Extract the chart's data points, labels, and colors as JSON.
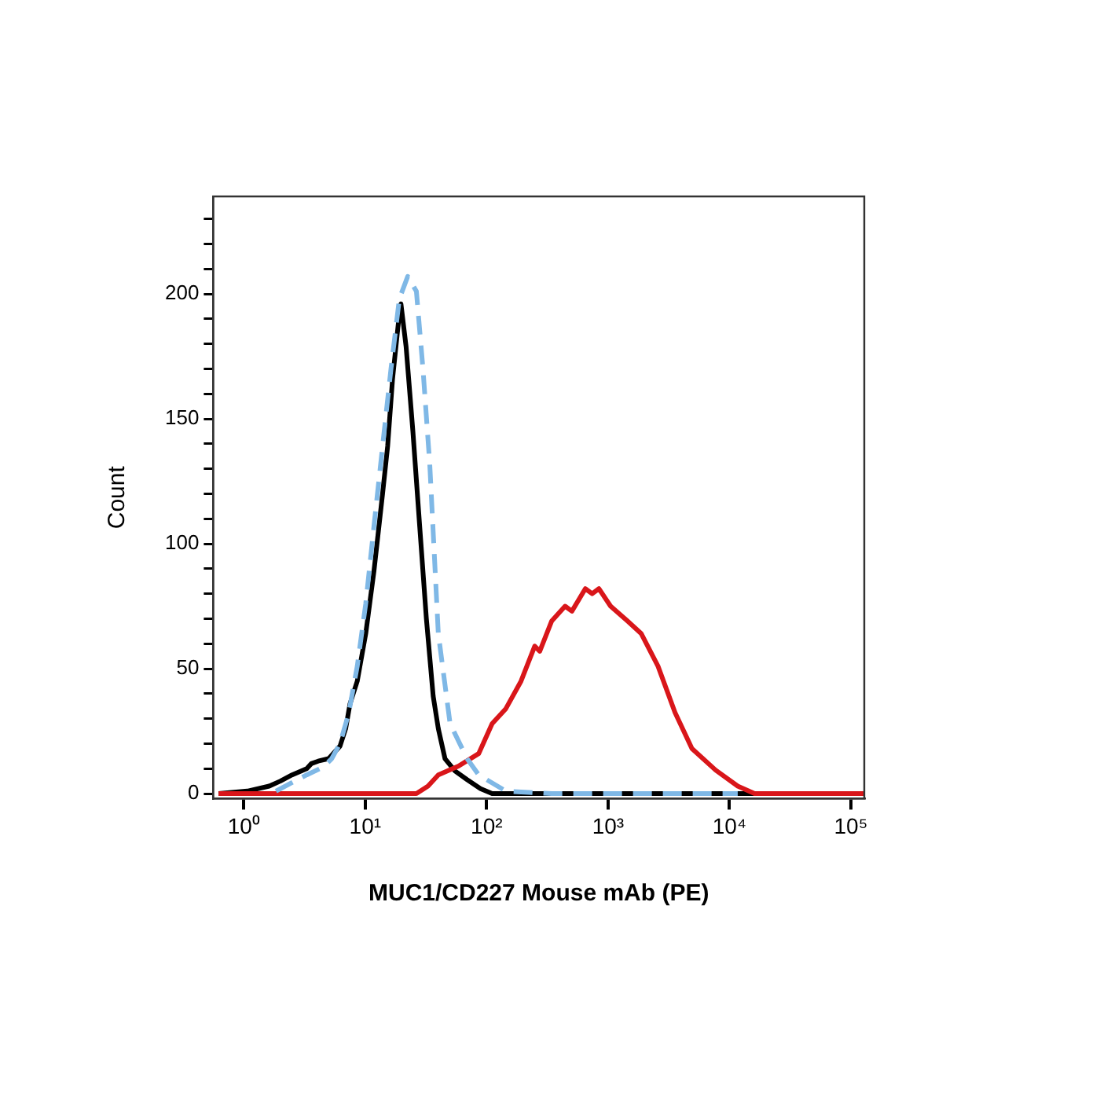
{
  "chart_data": {
    "type": "line",
    "xlabel": "MUC1/CD227 Mouse mAb (PE)",
    "ylabel": "Count",
    "log": "x",
    "marker": "none",
    "grid": false,
    "legend": false,
    "xlim": [
      0.56,
      129000
    ],
    "xticks": [
      {
        "value": 1,
        "label": "10⁰"
      },
      {
        "value": 10,
        "label": "10¹"
      },
      {
        "value": 100,
        "label": "10²"
      },
      {
        "value": 1000,
        "label": "10³"
      },
      {
        "value": 10000,
        "label": "10⁴"
      },
      {
        "value": 100000,
        "label": "10⁵"
      }
    ],
    "ylim": [
      -2,
      239
    ],
    "yticks": [
      0,
      {
        "value": 10,
        "label": null
      },
      {
        "value": 20,
        "label": null
      },
      {
        "value": 30,
        "label": null
      },
      {
        "value": 40,
        "label": null
      },
      50,
      {
        "value": 60,
        "label": null
      },
      {
        "value": 70,
        "label": null
      },
      {
        "value": 80,
        "label": null
      },
      {
        "value": 90,
        "label": null
      },
      100,
      {
        "value": 110,
        "label": null
      },
      {
        "value": 120,
        "label": null
      },
      {
        "value": 130,
        "label": null
      },
      {
        "value": 140,
        "label": null
      },
      150,
      {
        "value": 160,
        "label": null
      },
      {
        "value": 170,
        "label": null
      },
      {
        "value": 180,
        "label": null
      },
      {
        "value": 190,
        "label": null
      },
      200,
      {
        "value": 210,
        "label": null
      },
      {
        "value": 220,
        "label": null
      },
      {
        "value": 230,
        "label": null
      }
    ],
    "series": [
      {
        "color": "#7fb8e6",
        "line_style": "dashed",
        "x": [
          1.84,
          2.4,
          3.3,
          4.5,
          5.3,
          6.2,
          7.3,
          8.6,
          10.1,
          11.8,
          13.9,
          16.3,
          19.1,
          22.4,
          26.4,
          29.9,
          34,
          40,
          50,
          69,
          86,
          144,
          343,
          11700
        ],
        "values": [
          1,
          4,
          7.5,
          10.6,
          14,
          20,
          32,
          51,
          76,
          107,
          139,
          170,
          198,
          207,
          201,
          170,
          132,
          64,
          28,
          14,
          7.5,
          1,
          0,
          0
        ]
      },
      {
        "color": "#d9161a",
        "line_style": "solid",
        "x": [
          0.62,
          26.4,
          32.9,
          40,
          58.7,
          86,
          111,
          144,
          192,
          249,
          274,
          343,
          443,
          504,
          650,
          740,
          841,
          1050,
          1450,
          1880,
          2580,
          3560,
          4910,
          7690,
          11700,
          16100,
          129000
        ],
        "values": [
          0,
          0,
          3,
          7.5,
          11,
          16,
          28,
          34,
          45,
          59,
          57,
          69,
          75,
          73,
          82,
          80,
          82,
          75,
          69,
          64,
          51,
          32.5,
          18,
          9.4,
          3,
          0,
          0
        ]
      },
      {
        "color": "#000000",
        "line_style": "solid",
        "x": [
          0.62,
          1.07,
          1.62,
          2.0,
          2.5,
          3.3,
          3.6,
          4.1,
          5.0,
          6.2,
          6.9,
          7.5,
          8.6,
          10.1,
          11.8,
          13.9,
          15.3,
          16.8,
          19.1,
          19.7,
          21.7,
          24.7,
          28.1,
          31.9,
          36.3,
          40,
          45.4,
          55,
          69,
          89,
          111,
          129000
        ],
        "values": [
          0,
          1,
          3,
          5,
          7.5,
          10,
          12,
          13,
          14,
          19,
          26,
          36,
          45,
          64,
          89,
          120,
          139,
          166,
          192,
          196,
          179,
          145,
          107,
          70,
          39,
          26,
          14,
          9,
          5.6,
          2,
          0,
          0
        ]
      }
    ]
  }
}
